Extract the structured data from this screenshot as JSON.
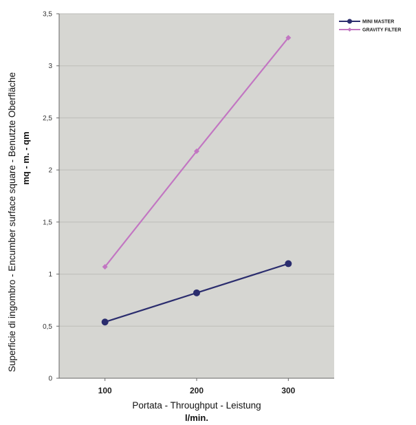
{
  "chart_data": {
    "type": "line",
    "x": [
      100,
      200,
      300
    ],
    "x_tick_labels": [
      "100",
      "200",
      "300"
    ],
    "series": [
      {
        "name": "MINI MASTER",
        "values": [
          0.54,
          0.82,
          1.1
        ],
        "color": "#2b2d6e",
        "marker": "circle"
      },
      {
        "name": "GRAVITY FILTER",
        "values": [
          1.07,
          2.18,
          3.27
        ],
        "color": "#c276c2",
        "marker": "diamond"
      }
    ],
    "ylim": [
      0,
      3.5
    ],
    "yticks": [
      0,
      0.5,
      1,
      1.5,
      2,
      2.5,
      3,
      3.5
    ],
    "y_tick_labels": [
      "0",
      "0,5",
      "1",
      "1,5",
      "2",
      "2,5",
      "3",
      "3,5"
    ],
    "xlabel": "Portata - Throughput - Leistung",
    "xlabel_unit": "l/min.",
    "ylabel": "Superficie di ingombro - Encumber surface square - Benutzte Oberfläche",
    "ylabel_unit": "mq - m. - qm",
    "grid": true,
    "legend_position": "top-right",
    "plot_background": "#d6d6d2"
  }
}
